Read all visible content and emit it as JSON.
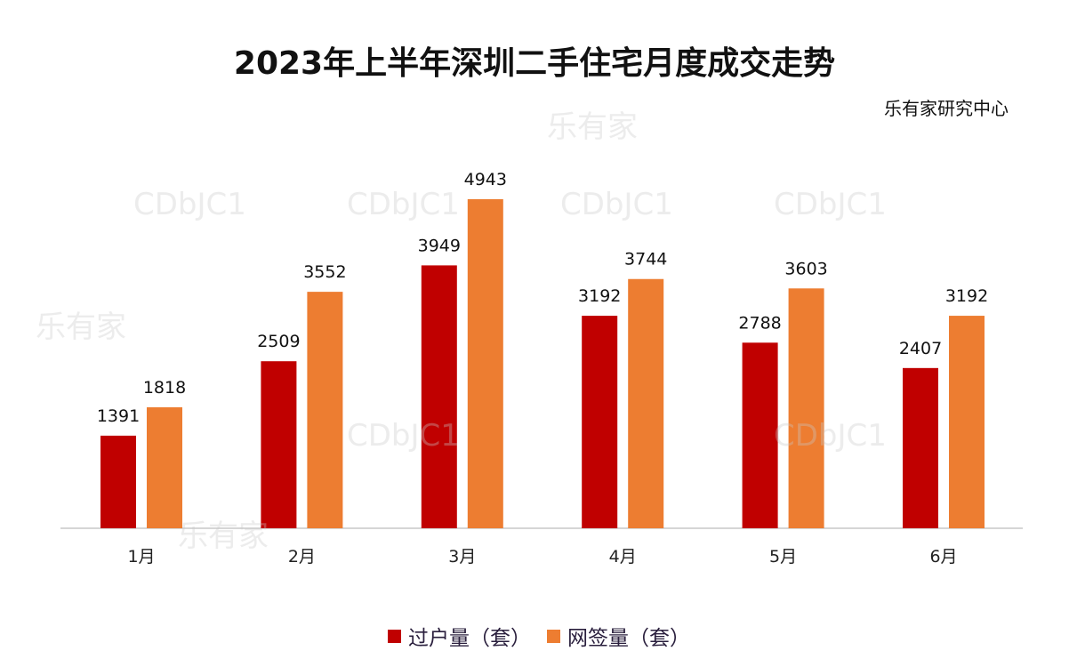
{
  "chart_data": {
    "type": "bar",
    "title": "2023年上半年深圳二手住宅月度成交走势",
    "source": "乐有家研究中心",
    "categories": [
      "1月",
      "2月",
      "3月",
      "4月",
      "5月",
      "6月"
    ],
    "series": [
      {
        "name": "过户量（套）",
        "color": "#c00000",
        "values": [
          1391,
          2509,
          3949,
          3192,
          2788,
          2407
        ]
      },
      {
        "name": "网签量（套）",
        "color": "#ed7d31",
        "values": [
          1818,
          3552,
          4943,
          3744,
          3603,
          3192
        ]
      }
    ],
    "ylim": [
      0,
      4943
    ],
    "grid": false,
    "data_labels": true,
    "legend": "bottom"
  },
  "watermarks": {
    "text1": "CDbJC1",
    "text2": "乐有家"
  }
}
